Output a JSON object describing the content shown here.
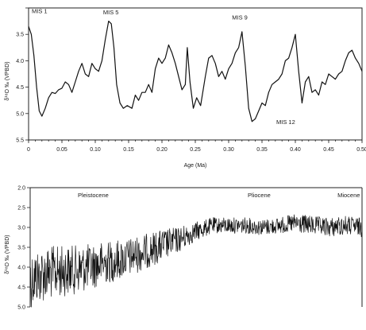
{
  "chart_data": [
    {
      "type": "line",
      "title": "",
      "xlabel": "Age (Ma)",
      "ylabel": "δ¹⁸O ‰ (VPBD)",
      "xlim": [
        0,
        0.5
      ],
      "ylim": [
        5.5,
        3.0
      ],
      "y_inverted": true,
      "grid": false,
      "x_ticks": [
        0,
        0.05,
        0.1,
        0.15,
        0.2,
        0.25,
        0.3,
        0.35,
        0.4,
        0.45,
        0.5
      ],
      "x_tick_labels": [
        "0",
        "0.05",
        "0.10",
        "0.15",
        "0.20",
        "0.25",
        "0.30",
        "0.35",
        "0.40",
        "0.45",
        "0.50"
      ],
      "y_ticks": [
        3.0,
        3.5,
        4.0,
        4.5,
        5.0,
        5.5
      ],
      "y_tick_labels": [
        "",
        "3.5",
        "4.0",
        "4.5",
        "5.0",
        "5.5"
      ],
      "annotations": [
        {
          "text": "MIS 1",
          "x": 0.0,
          "y": 3.1
        },
        {
          "text": "MIS 5",
          "x": 0.107,
          "y": 3.12
        },
        {
          "text": "MIS 9",
          "x": 0.317,
          "y": 3.25
        },
        {
          "text": "MIS 12",
          "x": 0.4,
          "y": 5.08
        }
      ],
      "series": [
        {
          "x": [
            0.0,
            0.004,
            0.008,
            0.012,
            0.016,
            0.02,
            0.025,
            0.03,
            0.035,
            0.04,
            0.045,
            0.05,
            0.055,
            0.06,
            0.065,
            0.07,
            0.075,
            0.08,
            0.085,
            0.09,
            0.095,
            0.1,
            0.105,
            0.11,
            0.115,
            0.12,
            0.124,
            0.128,
            0.132,
            0.137,
            0.142,
            0.148,
            0.155,
            0.16,
            0.165,
            0.17,
            0.175,
            0.18,
            0.185,
            0.19,
            0.195,
            0.2,
            0.205,
            0.21,
            0.215,
            0.22,
            0.225,
            0.23,
            0.235,
            0.238,
            0.242,
            0.247,
            0.252,
            0.258,
            0.265,
            0.27,
            0.275,
            0.28,
            0.285,
            0.29,
            0.295,
            0.3,
            0.305,
            0.31,
            0.315,
            0.32,
            0.325,
            0.33,
            0.335,
            0.34,
            0.345,
            0.35,
            0.355,
            0.36,
            0.365,
            0.37,
            0.375,
            0.38,
            0.385,
            0.39,
            0.395,
            0.4,
            0.405,
            0.41,
            0.415,
            0.42,
            0.425,
            0.43,
            0.435,
            0.44,
            0.445,
            0.45,
            0.455,
            0.46,
            0.465,
            0.47,
            0.475,
            0.48,
            0.485,
            0.49,
            0.495,
            0.5
          ],
          "y": [
            3.35,
            3.5,
            3.9,
            4.5,
            4.95,
            5.05,
            4.9,
            4.7,
            4.6,
            4.62,
            4.55,
            4.52,
            4.4,
            4.45,
            4.6,
            4.4,
            4.2,
            4.05,
            4.25,
            4.3,
            4.05,
            4.15,
            4.2,
            4.0,
            3.6,
            3.25,
            3.3,
            3.75,
            4.45,
            4.8,
            4.9,
            4.85,
            4.9,
            4.65,
            4.75,
            4.6,
            4.6,
            4.45,
            4.6,
            4.15,
            3.95,
            4.05,
            3.95,
            3.7,
            3.85,
            4.05,
            4.3,
            4.55,
            4.45,
            3.75,
            4.4,
            4.9,
            4.7,
            4.85,
            4.3,
            3.95,
            3.9,
            4.05,
            4.3,
            4.2,
            4.35,
            4.15,
            4.05,
            3.85,
            3.75,
            3.45,
            4.1,
            4.9,
            5.15,
            5.1,
            4.95,
            4.8,
            4.85,
            4.6,
            4.45,
            4.4,
            4.35,
            4.25,
            4.0,
            3.95,
            3.75,
            3.5,
            4.2,
            4.8,
            4.4,
            4.3,
            4.6,
            4.55,
            4.65,
            4.4,
            4.45,
            4.25,
            4.3,
            4.35,
            4.25,
            4.2,
            4.0,
            3.85,
            3.8,
            3.95,
            4.05,
            4.2
          ]
        }
      ]
    },
    {
      "type": "line",
      "title": "",
      "xlabel": "",
      "ylabel": "δ¹⁸O ‰ (VPBD)",
      "ylim": [
        5.0,
        2.0
      ],
      "y_inverted": true,
      "grid": false,
      "y_ticks": [
        2.0,
        2.5,
        3.0,
        3.5,
        4.0,
        4.5,
        5.0
      ],
      "y_tick_labels": [
        "2.0",
        "2.5",
        "3.0",
        "3.5",
        "4.0",
        "4.5",
        "5.0"
      ],
      "annotations": [
        {
          "text": "Pleistocene",
          "position": "upper-left"
        },
        {
          "text": "Pliocene",
          "position": "upper-center-right"
        },
        {
          "text": "Miocene",
          "position": "upper-right"
        }
      ],
      "series": [
        {
          "trend_x": [
            0.0,
            0.05,
            0.1,
            0.15,
            0.2,
            0.25,
            0.3,
            0.35,
            0.4,
            0.45,
            0.5,
            0.55,
            0.6,
            0.65,
            0.7,
            0.75,
            0.8,
            0.85,
            0.9,
            0.95,
            1.0
          ],
          "mean_y": [
            4.3,
            4.15,
            4.1,
            4.05,
            3.95,
            3.85,
            3.75,
            3.6,
            3.45,
            3.3,
            3.1,
            2.95,
            2.95,
            2.95,
            3.0,
            2.95,
            2.9,
            2.95,
            3.0,
            2.95,
            3.0
          ],
          "amplitude": [
            0.9,
            0.85,
            0.8,
            0.75,
            0.7,
            0.65,
            0.6,
            0.55,
            0.5,
            0.4,
            0.3,
            0.25,
            0.25,
            0.25,
            0.25,
            0.25,
            0.3,
            0.3,
            0.3,
            0.3,
            0.3
          ]
        }
      ]
    }
  ]
}
